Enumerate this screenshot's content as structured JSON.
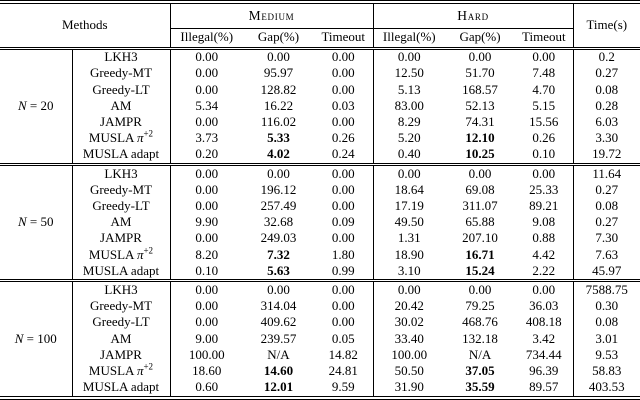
{
  "table": {
    "methods_header": "Methods",
    "time_header": "Time(s)",
    "column_groups": [
      {
        "label": "Medium",
        "subcols": [
          "Illegal(%)",
          "Gap(%)",
          "Timeout"
        ]
      },
      {
        "label": "Hard",
        "subcols": [
          "Illegal(%)",
          "Gap(%)",
          "Timeout"
        ]
      }
    ],
    "blocks": [
      {
        "n_label": {
          "var": "N",
          "rest": " = 20"
        },
        "rows": [
          {
            "method": "LKH3",
            "values": [
              "0.00",
              "0.00",
              "0.00",
              "0.00",
              "0.00",
              "0.00"
            ],
            "time": "0.2"
          },
          {
            "method": "Greedy-MT",
            "values": [
              "0.00",
              "95.97",
              "0.00",
              "12.50",
              "51.70",
              "7.48"
            ],
            "time": "0.27"
          },
          {
            "method": "Greedy-LT",
            "values": [
              "0.00",
              "128.82",
              "0.00",
              "5.13",
              "168.57",
              "4.70"
            ],
            "time": "0.08"
          },
          {
            "method": "AM",
            "values": [
              "5.34",
              "16.22",
              "0.03",
              "83.00",
              "52.13",
              "5.15"
            ],
            "time": "0.28"
          },
          {
            "method": "JAMPR",
            "values": [
              "0.00",
              "116.02",
              "0.00",
              "8.29",
              "74.31",
              "15.56"
            ],
            "time": "6.03"
          },
          {
            "method": "MUSLA",
            "method_math": "π",
            "method_sup": "+2",
            "bold_gap": true,
            "values": [
              "3.73",
              "5.33",
              "0.26",
              "5.20",
              "12.10",
              "0.26"
            ],
            "time": "3.30"
          },
          {
            "method": "MUSLA adapt",
            "bold_gap": true,
            "values": [
              "0.20",
              "4.02",
              "0.24",
              "0.40",
              "10.25",
              "0.10"
            ],
            "time": "19.72"
          }
        ]
      },
      {
        "n_label": {
          "var": "N",
          "rest": " = 50"
        },
        "rows": [
          {
            "method": "LKH3",
            "values": [
              "0.00",
              "0.00",
              "0.00",
              "0.00",
              "0.00",
              "0.00"
            ],
            "time": "11.64"
          },
          {
            "method": "Greedy-MT",
            "values": [
              "0.00",
              "196.12",
              "0.00",
              "18.64",
              "69.08",
              "25.33"
            ],
            "time": "0.27"
          },
          {
            "method": "Greedy-LT",
            "values": [
              "0.00",
              "257.49",
              "0.00",
              "17.19",
              "311.07",
              "89.21"
            ],
            "time": "0.08"
          },
          {
            "method": "AM",
            "values": [
              "9.90",
              "32.68",
              "0.09",
              "49.50",
              "65.88",
              "9.08"
            ],
            "time": "0.27"
          },
          {
            "method": "JAMPR",
            "values": [
              "0.00",
              "249.03",
              "0.00",
              "1.31",
              "207.10",
              "0.88"
            ],
            "time": "7.30"
          },
          {
            "method": "MUSLA",
            "method_math": "π",
            "method_sup": "+2",
            "bold_gap": true,
            "values": [
              "8.20",
              "7.32",
              "1.80",
              "18.90",
              "16.71",
              "4.42"
            ],
            "time": "7.63"
          },
          {
            "method": "MUSLA adapt",
            "bold_gap": true,
            "values": [
              "0.10",
              "5.63",
              "0.99",
              "3.10",
              "15.24",
              "2.22"
            ],
            "time": "45.97"
          }
        ]
      },
      {
        "n_label": {
          "var": "N",
          "rest": " = 100"
        },
        "rows": [
          {
            "method": "LKH3",
            "values": [
              "0.00",
              "0.00",
              "0.00",
              "0.00",
              "0.00",
              "0.00"
            ],
            "time": "7588.75"
          },
          {
            "method": "Greedy-MT",
            "values": [
              "0.00",
              "314.04",
              "0.00",
              "20.42",
              "79.25",
              "36.03"
            ],
            "time": "0.30"
          },
          {
            "method": "Greedy-LT",
            "values": [
              "0.00",
              "409.62",
              "0.00",
              "30.02",
              "468.76",
              "408.18"
            ],
            "time": "0.08"
          },
          {
            "method": "AM",
            "values": [
              "9.00",
              "239.57",
              "0.05",
              "33.40",
              "132.18",
              "3.42"
            ],
            "time": "3.01"
          },
          {
            "method": "JAMPR",
            "values": [
              "100.00",
              "N/A",
              "14.82",
              "100.00",
              "N/A",
              "734.44"
            ],
            "time": "9.53"
          },
          {
            "method": "MUSLA",
            "method_math": "π",
            "method_sup": "+2",
            "bold_gap": true,
            "values": [
              "18.60",
              "14.60",
              "24.81",
              "50.50",
              "37.05",
              "96.39"
            ],
            "time": "58.83"
          },
          {
            "method": "MUSLA adapt",
            "bold_gap": true,
            "values": [
              "0.60",
              "12.01",
              "9.59",
              "31.90",
              "35.59",
              "89.57"
            ],
            "time": "403.53"
          }
        ]
      }
    ]
  }
}
